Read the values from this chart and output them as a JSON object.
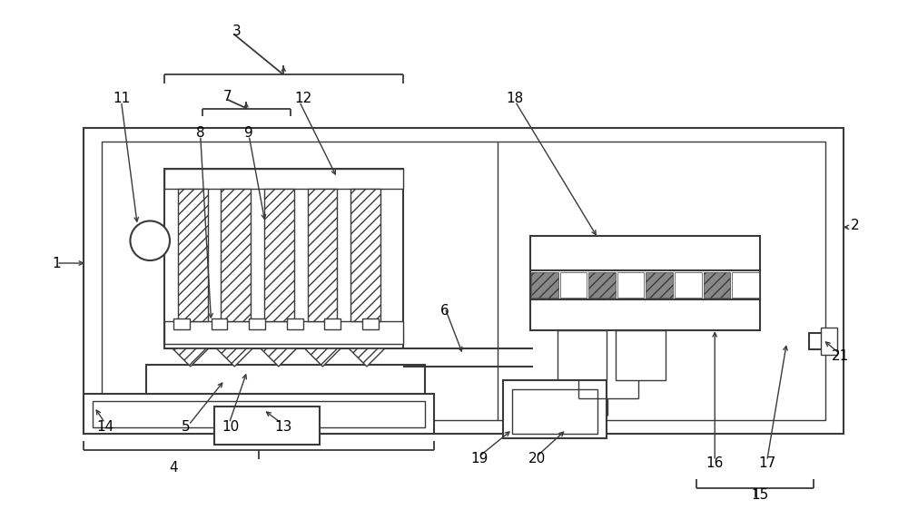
{
  "bg_color": "#ffffff",
  "line_color": "#3a3a3a",
  "figsize": [
    10.0,
    5.83
  ],
  "dpi": 100
}
